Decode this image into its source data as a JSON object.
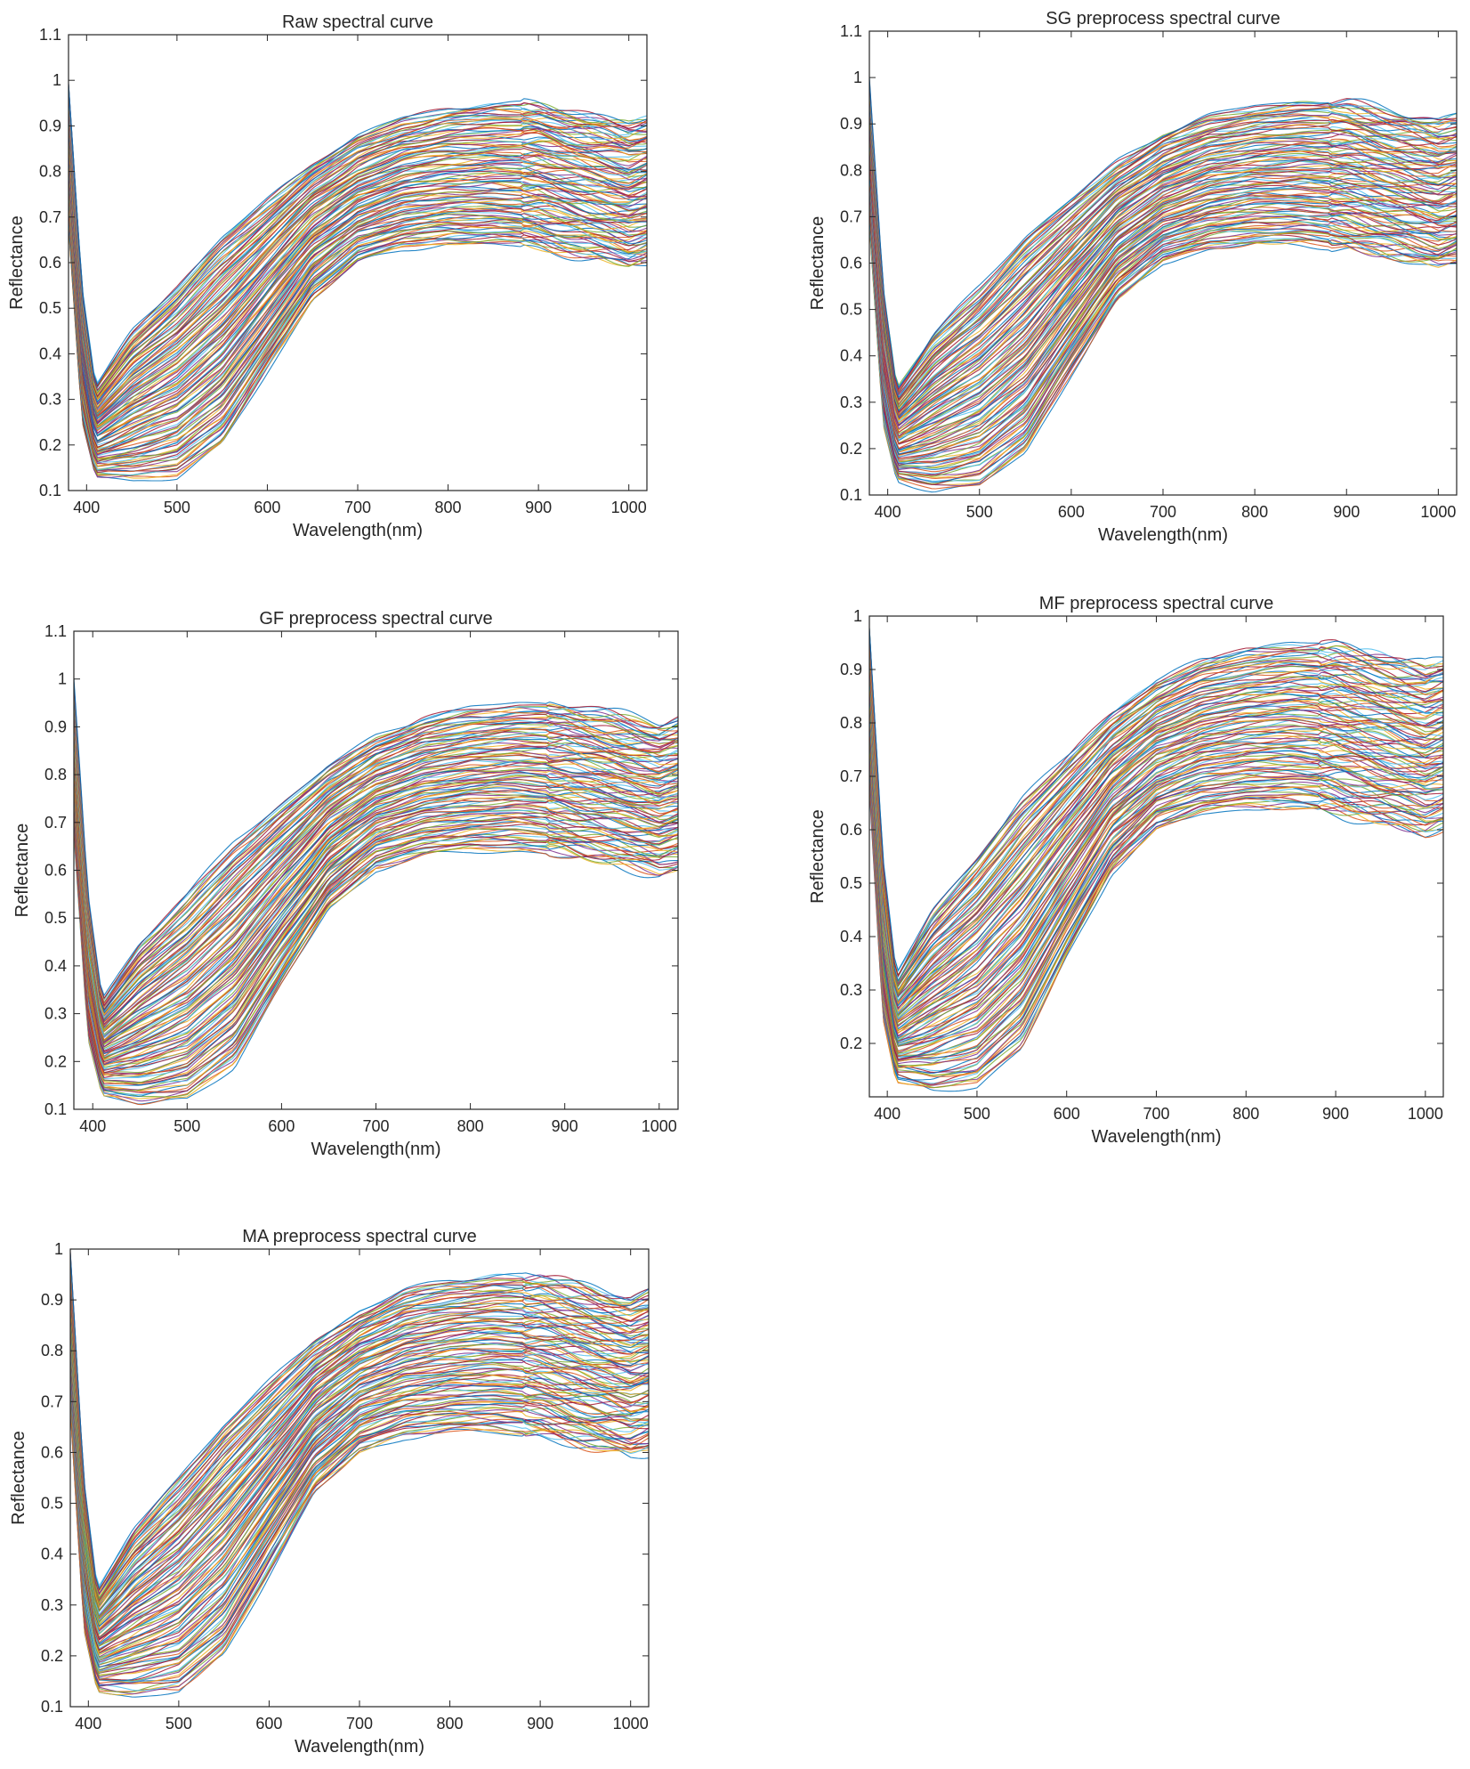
{
  "chart_data": [
    {
      "type": "line",
      "title": "Raw spectral curve",
      "xlabel": "Wavelength(nm)",
      "ylabel": "Reflectance",
      "xlim": [
        380,
        1020
      ],
      "ylim": [
        0.1,
        1.1
      ],
      "xticks": [
        400,
        500,
        600,
        700,
        800,
        900,
        1000
      ],
      "yticks": [
        0.1,
        0.2,
        0.3,
        0.4,
        0.5,
        0.6,
        0.7,
        0.8,
        0.9,
        1,
        1.1
      ],
      "grid": false,
      "series_count": 120,
      "envelope": {
        "x": [
          380,
          395,
          410,
          450,
          500,
          550,
          600,
          650,
          700,
          750,
          800,
          850,
          900,
          950,
          1000,
          1020
        ],
        "y_low": [
          0.68,
          0.25,
          0.13,
          0.12,
          0.13,
          0.2,
          0.36,
          0.52,
          0.6,
          0.63,
          0.64,
          0.64,
          0.63,
          0.61,
          0.59,
          0.6
        ],
        "y_high": [
          1.0,
          0.55,
          0.33,
          0.45,
          0.55,
          0.66,
          0.74,
          0.82,
          0.88,
          0.92,
          0.94,
          0.95,
          0.95,
          0.93,
          0.91,
          0.92
        ]
      }
    },
    {
      "type": "line",
      "title": "SG preprocess spectral curve",
      "xlabel": "Wavelength(nm)",
      "ylabel": "Reflectance",
      "xlim": [
        380,
        1020
      ],
      "ylim": [
        0.1,
        1.1
      ],
      "xticks": [
        400,
        500,
        600,
        700,
        800,
        900,
        1000
      ],
      "yticks": [
        0.1,
        0.2,
        0.3,
        0.4,
        0.5,
        0.6,
        0.7,
        0.8,
        0.9,
        1,
        1.1
      ],
      "grid": false,
      "series_count": 120,
      "envelope": {
        "x": [
          380,
          395,
          410,
          450,
          500,
          550,
          600,
          650,
          700,
          750,
          800,
          850,
          900,
          950,
          1000,
          1020
        ],
        "y_low": [
          0.68,
          0.25,
          0.13,
          0.11,
          0.12,
          0.19,
          0.36,
          0.52,
          0.6,
          0.63,
          0.64,
          0.64,
          0.63,
          0.61,
          0.59,
          0.6
        ],
        "y_high": [
          1.0,
          0.55,
          0.33,
          0.45,
          0.55,
          0.66,
          0.74,
          0.82,
          0.88,
          0.92,
          0.94,
          0.95,
          0.95,
          0.93,
          0.91,
          0.92
        ]
      }
    },
    {
      "type": "line",
      "title": "GF preprocess spectral curve",
      "xlabel": "Wavelength(nm)",
      "ylabel": "Reflectance",
      "xlim": [
        380,
        1020
      ],
      "ylim": [
        0.1,
        1.1
      ],
      "xticks": [
        400,
        500,
        600,
        700,
        800,
        900,
        1000
      ],
      "yticks": [
        0.1,
        0.2,
        0.3,
        0.4,
        0.5,
        0.6,
        0.7,
        0.8,
        0.9,
        1,
        1.1
      ],
      "grid": false,
      "series_count": 120,
      "envelope": {
        "x": [
          380,
          395,
          410,
          450,
          500,
          550,
          600,
          650,
          700,
          750,
          800,
          850,
          900,
          950,
          1000,
          1020
        ],
        "y_low": [
          0.68,
          0.25,
          0.13,
          0.11,
          0.12,
          0.19,
          0.36,
          0.52,
          0.6,
          0.63,
          0.64,
          0.64,
          0.63,
          0.61,
          0.59,
          0.6
        ],
        "y_high": [
          1.0,
          0.55,
          0.33,
          0.45,
          0.55,
          0.66,
          0.74,
          0.82,
          0.88,
          0.92,
          0.94,
          0.95,
          0.95,
          0.93,
          0.91,
          0.92
        ]
      }
    },
    {
      "type": "line",
      "title": "MF preprocess spectral curve",
      "xlabel": "Wavelength(nm)",
      "ylabel": "Reflectance",
      "xlim": [
        380,
        1020
      ],
      "ylim": [
        0.1,
        1.0
      ],
      "xticks": [
        400,
        500,
        600,
        700,
        800,
        900,
        1000
      ],
      "yticks": [
        0.2,
        0.3,
        0.4,
        0.5,
        0.6,
        0.7,
        0.8,
        0.9,
        1
      ],
      "grid": false,
      "series_count": 120,
      "envelope": {
        "x": [
          380,
          395,
          410,
          450,
          500,
          550,
          600,
          650,
          700,
          750,
          800,
          850,
          900,
          950,
          1000,
          1020
        ],
        "y_low": [
          0.68,
          0.25,
          0.13,
          0.11,
          0.12,
          0.19,
          0.36,
          0.52,
          0.6,
          0.63,
          0.64,
          0.64,
          0.63,
          0.61,
          0.59,
          0.6
        ],
        "y_high": [
          0.98,
          0.55,
          0.33,
          0.45,
          0.55,
          0.66,
          0.74,
          0.82,
          0.88,
          0.92,
          0.94,
          0.95,
          0.95,
          0.93,
          0.91,
          0.92
        ]
      }
    },
    {
      "type": "line",
      "title": "MA preprocess spectral curve",
      "xlabel": "Wavelength(nm)",
      "ylabel": "Reflectance",
      "xlim": [
        380,
        1020
      ],
      "ylim": [
        0.1,
        1.0
      ],
      "xticks": [
        400,
        500,
        600,
        700,
        800,
        900,
        1000
      ],
      "yticks": [
        0.1,
        0.2,
        0.3,
        0.4,
        0.5,
        0.6,
        0.7,
        0.8,
        0.9,
        1
      ],
      "grid": false,
      "series_count": 120,
      "envelope": {
        "x": [
          380,
          395,
          410,
          450,
          500,
          550,
          600,
          650,
          700,
          750,
          800,
          850,
          900,
          950,
          1000,
          1020
        ],
        "y_low": [
          0.68,
          0.25,
          0.13,
          0.12,
          0.13,
          0.2,
          0.36,
          0.52,
          0.6,
          0.63,
          0.64,
          0.64,
          0.63,
          0.61,
          0.59,
          0.6
        ],
        "y_high": [
          1.0,
          0.55,
          0.33,
          0.45,
          0.55,
          0.66,
          0.74,
          0.82,
          0.88,
          0.92,
          0.94,
          0.95,
          0.95,
          0.93,
          0.91,
          0.92
        ]
      }
    }
  ],
  "palette": [
    "#0072BD",
    "#D95319",
    "#EDB120",
    "#7E2F8E",
    "#77AC30",
    "#4DBEEE",
    "#A2142F"
  ]
}
